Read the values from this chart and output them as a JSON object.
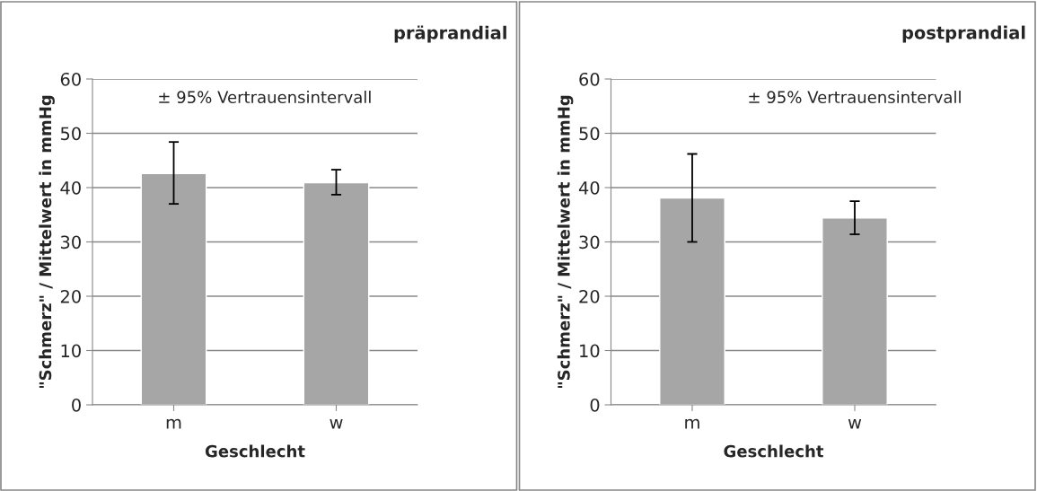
{
  "chart_data": [
    {
      "type": "bar",
      "title": "präprandial",
      "xlabel": "Geschlecht",
      "ylabel": "\"Schmerz\" / Mittelwert in mmHg",
      "categories": [
        "m",
        "w"
      ],
      "values": [
        42.6,
        40.9
      ],
      "errors": [
        [
          37.0,
          48.4
        ],
        [
          38.7,
          43.3
        ]
      ],
      "color": "#a6a6a6",
      "ylim": [
        0,
        60
      ],
      "yticks": [
        0,
        10,
        20,
        30,
        40,
        50,
        60
      ],
      "grid": "y",
      "annotations": [
        "± 95% Vertrauensintervall"
      ]
    },
    {
      "type": "bar",
      "title": "postprandial",
      "xlabel": "Geschlecht",
      "ylabel": "\"Schmerz\" / Mittelwert in mmHg",
      "categories": [
        "m",
        "w"
      ],
      "values": [
        38.1,
        34.4
      ],
      "errors": [
        [
          30.0,
          46.2
        ],
        [
          31.4,
          37.5
        ]
      ],
      "color": "#a6a6a6",
      "ylim": [
        0,
        60
      ],
      "yticks": [
        0,
        10,
        20,
        30,
        40,
        50,
        60
      ],
      "grid": "y",
      "annotations": [
        "± 95% Vertrauensintervall"
      ]
    }
  ]
}
